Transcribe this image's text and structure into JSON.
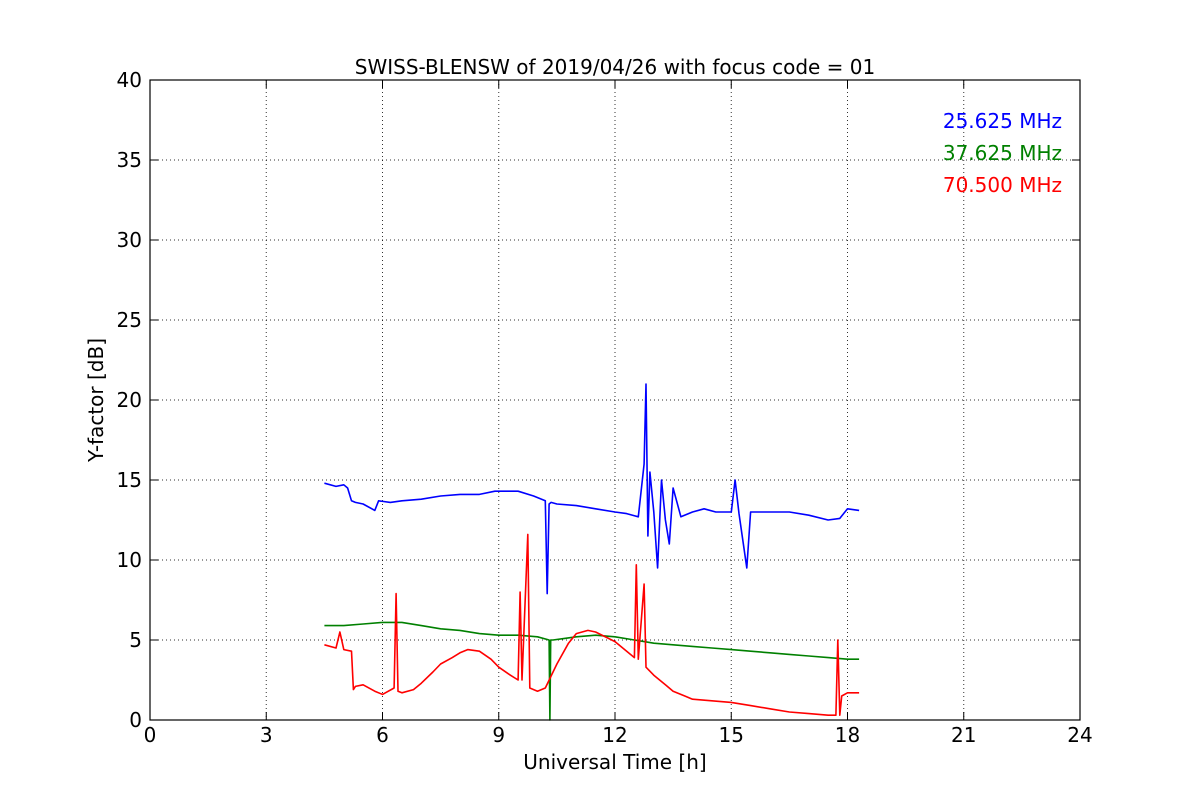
{
  "chart_data": {
    "type": "line",
    "title": "SWISS-BLENSW of 2019/04/26 with focus code = 01",
    "xlabel": "Universal Time [h]",
    "ylabel": "Y-factor [dB]",
    "xlim": [
      0,
      24
    ],
    "ylim": [
      0,
      40
    ],
    "xticks": [
      0,
      3,
      6,
      9,
      12,
      15,
      18,
      21,
      24
    ],
    "yticks": [
      0,
      5,
      10,
      15,
      20,
      25,
      30,
      35,
      40
    ],
    "grid": true,
    "legend_position": "top-right",
    "series": [
      {
        "name": "25.625 MHz",
        "color": "#0000ff",
        "x": [
          4.5,
          4.8,
          5.0,
          5.1,
          5.2,
          5.3,
          5.5,
          5.8,
          5.9,
          6.2,
          6.5,
          7.0,
          7.5,
          8.0,
          8.5,
          8.9,
          9.5,
          9.9,
          10.2,
          10.25,
          10.3,
          10.35,
          10.5,
          11.0,
          11.5,
          12.0,
          12.3,
          12.6,
          12.75,
          12.8,
          12.85,
          12.9,
          13.0,
          13.1,
          13.2,
          13.3,
          13.4,
          13.5,
          13.7,
          14.0,
          14.3,
          14.6,
          15.0,
          15.1,
          15.2,
          15.4,
          15.5,
          16.0,
          16.5,
          17.0,
          17.5,
          17.8,
          18.0,
          18.3
        ],
        "y": [
          14.8,
          14.6,
          14.7,
          14.5,
          13.7,
          13.6,
          13.5,
          13.1,
          13.7,
          13.6,
          13.7,
          13.8,
          14.0,
          14.1,
          14.1,
          14.3,
          14.3,
          14.0,
          13.7,
          7.9,
          13.5,
          13.6,
          13.5,
          13.4,
          13.2,
          13.0,
          12.9,
          12.7,
          16.0,
          21.0,
          11.5,
          15.5,
          13.0,
          9.5,
          15.0,
          12.5,
          11.0,
          14.5,
          12.7,
          13.0,
          13.2,
          13.0,
          13.0,
          15.0,
          12.9,
          9.5,
          13.0,
          13.0,
          13.0,
          12.8,
          12.5,
          12.6,
          13.2,
          13.1
        ]
      },
      {
        "name": "37.625 MHz",
        "color": "#008000",
        "x": [
          4.5,
          5.0,
          5.5,
          6.0,
          6.5,
          7.0,
          7.5,
          8.0,
          8.5,
          9.0,
          9.5,
          10.0,
          10.3,
          10.32,
          10.34,
          10.4,
          10.7,
          11.0,
          11.5,
          12.0,
          12.5,
          13.0,
          13.5,
          14.0,
          14.5,
          15.0,
          15.5,
          16.0,
          16.5,
          17.0,
          17.5,
          18.0,
          18.3
        ],
        "y": [
          5.9,
          5.9,
          6.0,
          6.1,
          6.1,
          5.9,
          5.7,
          5.6,
          5.4,
          5.3,
          5.3,
          5.2,
          5.0,
          0.0,
          5.0,
          5.0,
          5.1,
          5.2,
          5.3,
          5.2,
          5.0,
          4.8,
          4.7,
          4.6,
          4.5,
          4.4,
          4.3,
          4.2,
          4.1,
          4.0,
          3.9,
          3.8,
          3.8
        ]
      },
      {
        "name": "70.500 MHz",
        "color": "#ff0000",
        "x": [
          4.5,
          4.8,
          4.9,
          5.0,
          5.2,
          5.25,
          5.3,
          5.5,
          5.8,
          6.0,
          6.3,
          6.35,
          6.4,
          6.5,
          6.8,
          7.0,
          7.3,
          7.5,
          7.8,
          8.0,
          8.2,
          8.5,
          8.8,
          9.0,
          9.3,
          9.5,
          9.55,
          9.6,
          9.75,
          9.8,
          10.0,
          10.2,
          10.5,
          10.8,
          11.0,
          11.3,
          11.5,
          12.0,
          12.5,
          12.55,
          12.6,
          12.75,
          12.8,
          13.0,
          13.3,
          13.5,
          13.8,
          14.0,
          14.5,
          15.0,
          15.5,
          16.0,
          16.5,
          17.0,
          17.5,
          17.7,
          17.75,
          17.8,
          17.85,
          18.0,
          18.3
        ],
        "y": [
          4.7,
          4.5,
          5.5,
          4.4,
          4.3,
          1.9,
          2.1,
          2.2,
          1.8,
          1.6,
          2.0,
          7.9,
          1.8,
          1.7,
          1.9,
          2.3,
          3.0,
          3.5,
          3.9,
          4.2,
          4.4,
          4.3,
          3.8,
          3.3,
          2.8,
          2.5,
          8.0,
          2.5,
          11.6,
          2.0,
          1.8,
          2.0,
          3.5,
          4.8,
          5.4,
          5.6,
          5.5,
          4.9,
          3.9,
          9.7,
          3.8,
          8.5,
          3.3,
          2.8,
          2.2,
          1.8,
          1.5,
          1.3,
          1.2,
          1.1,
          0.9,
          0.7,
          0.5,
          0.4,
          0.3,
          0.3,
          5.0,
          0.3,
          1.5,
          1.7,
          1.7
        ]
      }
    ]
  }
}
